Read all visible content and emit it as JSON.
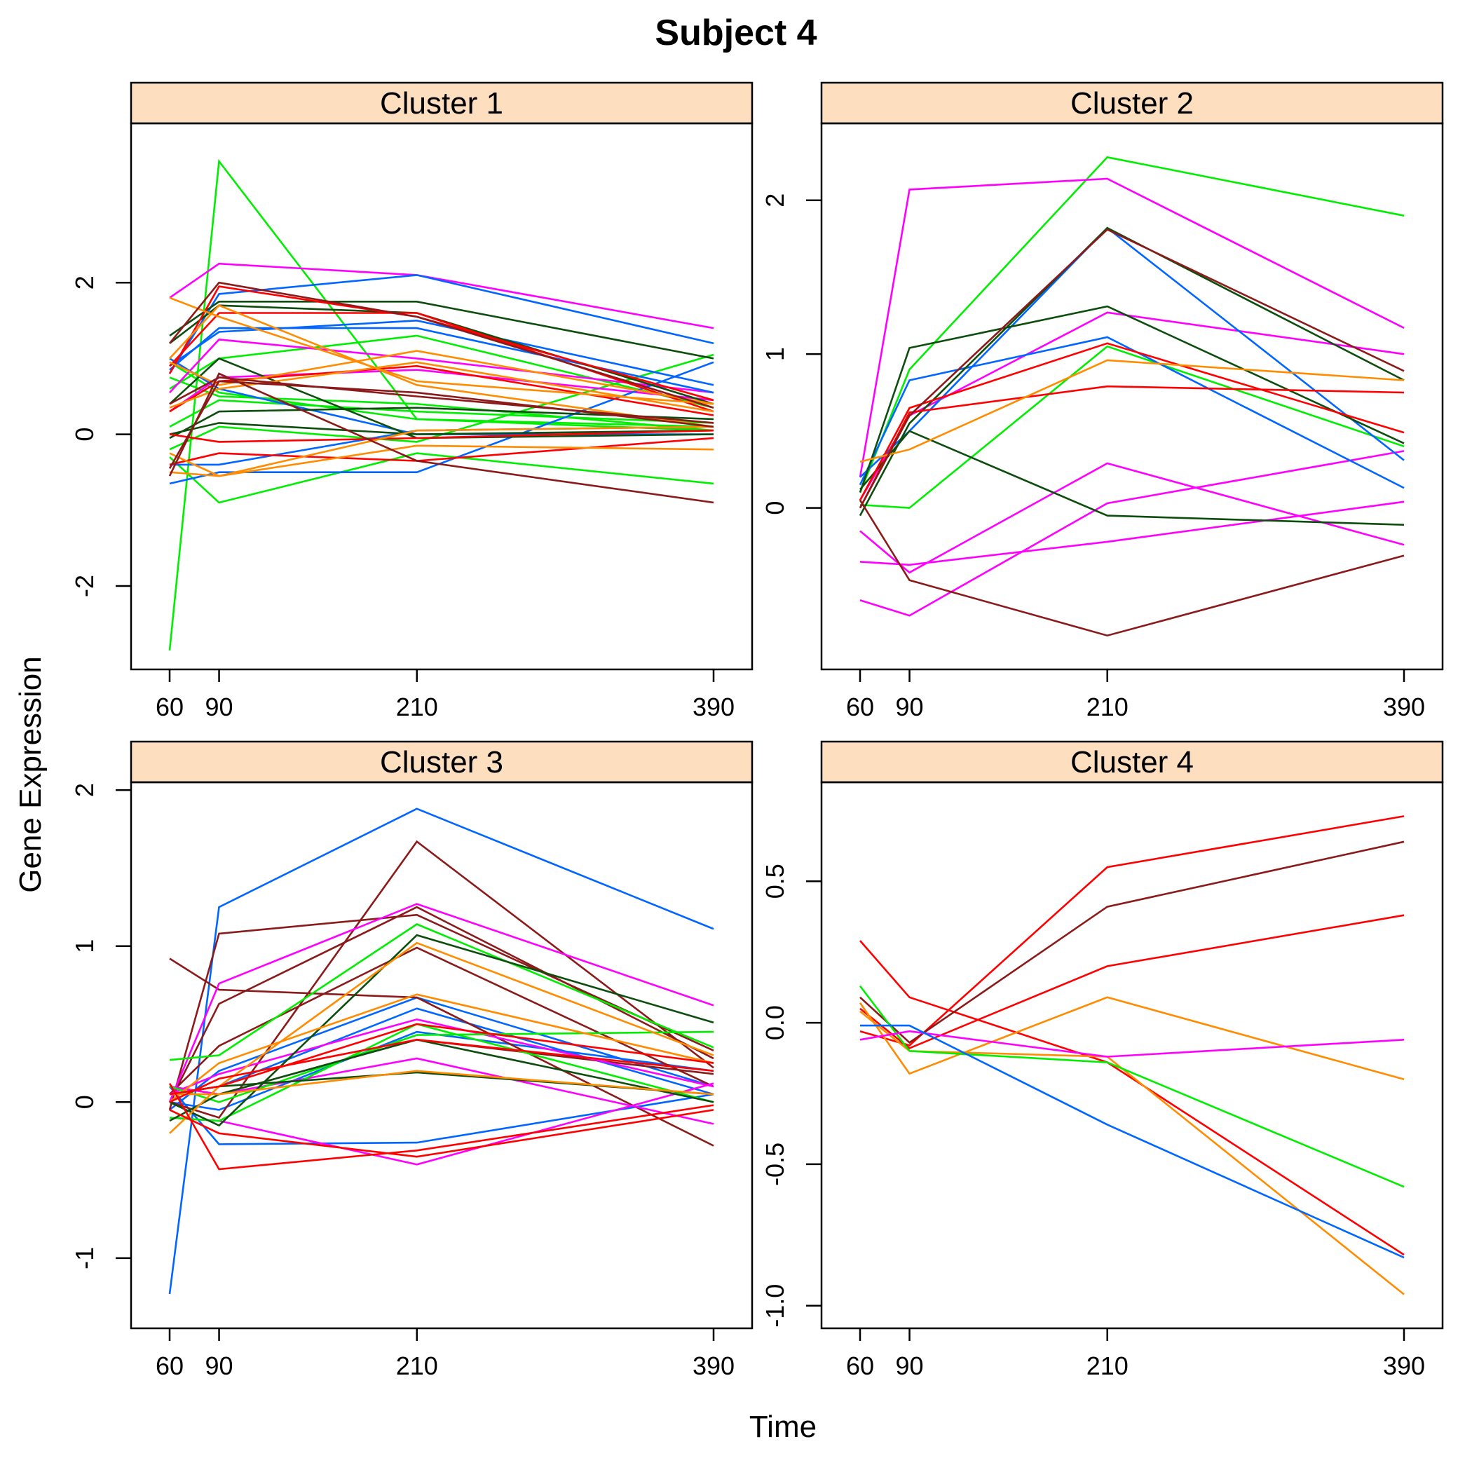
{
  "title": "Subject 4",
  "xlabel": "Time",
  "ylabel": "Gene Expression",
  "colors": {
    "strip": "#FDDFC0",
    "series_palette": [
      "#00EE00",
      "#FF00FF",
      "#0066FF",
      "#0D4D0D",
      "#FF0000",
      "#FF8C00",
      "#8B1A1A"
    ]
  },
  "chart_data": [
    {
      "type": "line",
      "panel": "Cluster 1",
      "x": [
        60,
        90,
        210,
        390
      ],
      "xticks": [
        60,
        90,
        210,
        390
      ],
      "ylim": [
        -3.1,
        4.1
      ],
      "yticks": [
        -2,
        0,
        2
      ],
      "series": [
        {
          "color": "#00EE00",
          "values": [
            -2.85,
            3.6,
            0.2,
            0.05
          ]
        },
        {
          "color": "#00EE00",
          "values": [
            -0.3,
            -0.9,
            -0.25,
            -0.65
          ]
        },
        {
          "color": "#00EE00",
          "values": [
            0.6,
            1.0,
            1.3,
            0.35
          ]
        },
        {
          "color": "#00EE00",
          "values": [
            0.75,
            0.5,
            0.4,
            0.05
          ]
        },
        {
          "color": "#00EE00",
          "values": [
            0.1,
            0.45,
            0.3,
            0.15
          ]
        },
        {
          "color": "#00EE00",
          "values": [
            0.95,
            0.55,
            0.2,
            0.1
          ]
        },
        {
          "color": "#00EE00",
          "values": [
            -0.2,
            0.1,
            -0.1,
            1.05
          ]
        },
        {
          "color": "#FF00FF",
          "values": [
            1.8,
            2.25,
            2.1,
            1.4
          ]
        },
        {
          "color": "#FF00FF",
          "values": [
            0.55,
            1.25,
            1.0,
            0.55
          ]
        },
        {
          "color": "#FF00FF",
          "values": [
            0.3,
            0.75,
            0.85,
            0.45
          ]
        },
        {
          "color": "#0066FF",
          "values": [
            0.8,
            1.85,
            2.1,
            1.2
          ]
        },
        {
          "color": "#0066FF",
          "values": [
            0.9,
            1.35,
            1.5,
            0.65
          ]
        },
        {
          "color": "#0066FF",
          "values": [
            -0.65,
            -0.5,
            -0.5,
            0.95
          ]
        },
        {
          "color": "#0066FF",
          "values": [
            1.0,
            0.6,
            0.0,
            0.0
          ]
        },
        {
          "color": "#0066FF",
          "values": [
            0.85,
            1.4,
            1.4,
            0.55
          ]
        },
        {
          "color": "#0066FF",
          "values": [
            -0.4,
            -0.4,
            0.05,
            0.1
          ]
        },
        {
          "color": "#0D4D0D",
          "values": [
            1.3,
            1.75,
            1.75,
            1.0
          ]
        },
        {
          "color": "#0D4D0D",
          "values": [
            0.0,
            0.15,
            0.0,
            0.05
          ]
        },
        {
          "color": "#0D4D0D",
          "values": [
            1.2,
            1.7,
            1.6,
            0.4
          ]
        },
        {
          "color": "#0D4D0D",
          "values": [
            -0.05,
            0.3,
            0.35,
            0.2
          ]
        },
        {
          "color": "#0D4D0D",
          "values": [
            0.4,
            1.0,
            -0.05,
            0.0
          ]
        },
        {
          "color": "#FF0000",
          "values": [
            0.8,
            1.95,
            1.55,
            0.45
          ]
        },
        {
          "color": "#FF0000",
          "values": [
            -0.4,
            -0.25,
            -0.35,
            -0.05
          ]
        },
        {
          "color": "#FF0000",
          "values": [
            0.9,
            1.6,
            1.6,
            0.3
          ]
        },
        {
          "color": "#FF0000",
          "values": [
            0.0,
            -0.1,
            -0.05,
            0.05
          ]
        },
        {
          "color": "#FF0000",
          "values": [
            0.3,
            0.7,
            0.9,
            0.25
          ]
        },
        {
          "color": "#FF8C00",
          "values": [
            1.8,
            1.55,
            0.7,
            0.4
          ]
        },
        {
          "color": "#FF8C00",
          "values": [
            0.95,
            0.65,
            1.1,
            0.4
          ]
        },
        {
          "color": "#FF8C00",
          "values": [
            -0.25,
            -0.55,
            -0.15,
            -0.2
          ]
        },
        {
          "color": "#FF8C00",
          "values": [
            -0.5,
            -0.55,
            0.05,
            0.1
          ]
        },
        {
          "color": "#FF8C00",
          "values": [
            1.0,
            1.7,
            0.65,
            0.1
          ]
        },
        {
          "color": "#FF8C00",
          "values": [
            0.35,
            0.6,
            0.95,
            0.3
          ]
        },
        {
          "color": "#8B1A1A",
          "values": [
            1.2,
            2.0,
            1.55,
            0.35
          ]
        },
        {
          "color": "#8B1A1A",
          "values": [
            -0.55,
            0.8,
            -0.35,
            -0.9
          ]
        },
        {
          "color": "#8B1A1A",
          "values": [
            0.4,
            0.75,
            0.5,
            0.15
          ]
        },
        {
          "color": "#8B1A1A",
          "values": [
            -0.45,
            0.7,
            0.55,
            0.1
          ]
        }
      ]
    },
    {
      "type": "line",
      "panel": "Cluster 2",
      "x": [
        60,
        90,
        210,
        390
      ],
      "xticks": [
        60,
        90,
        210,
        390
      ],
      "ylim": [
        -1.05,
        2.5
      ],
      "yticks": [
        0,
        1,
        2
      ],
      "series": [
        {
          "color": "#00EE00",
          "values": [
            0.1,
            0.9,
            2.28,
            1.9
          ]
        },
        {
          "color": "#00EE00",
          "values": [
            0.02,
            0.0,
            1.05,
            0.4
          ]
        },
        {
          "color": "#FF00FF",
          "values": [
            0.2,
            2.07,
            2.14,
            1.17
          ]
        },
        {
          "color": "#FF00FF",
          "values": [
            0.05,
            0.6,
            1.27,
            1.0
          ]
        },
        {
          "color": "#FF00FF",
          "values": [
            -0.15,
            -0.42,
            0.29,
            -0.24
          ]
        },
        {
          "color": "#FF00FF",
          "values": [
            -0.6,
            -0.7,
            0.03,
            0.37
          ]
        },
        {
          "color": "#FF00FF",
          "values": [
            -0.35,
            -0.37,
            -0.22,
            0.04
          ]
        },
        {
          "color": "#0066FF",
          "values": [
            0.15,
            0.83,
            1.11,
            0.13
          ]
        },
        {
          "color": "#0066FF",
          "values": [
            0.2,
            0.5,
            1.82,
            0.31
          ]
        },
        {
          "color": "#0D4D0D",
          "values": [
            0.1,
            1.04,
            1.31,
            0.42
          ]
        },
        {
          "color": "#0D4D0D",
          "values": [
            -0.05,
            0.55,
            1.82,
            0.83
          ]
        },
        {
          "color": "#0D4D0D",
          "values": [
            0.12,
            0.5,
            -0.05,
            -0.11
          ]
        },
        {
          "color": "#FF0000",
          "values": [
            0.05,
            0.65,
            1.07,
            0.49
          ]
        },
        {
          "color": "#FF0000",
          "values": [
            0.0,
            0.62,
            0.79,
            0.75
          ]
        },
        {
          "color": "#FF8C00",
          "values": [
            0.3,
            0.38,
            0.96,
            0.83
          ]
        },
        {
          "color": "#8B1A1A",
          "values": [
            0.05,
            -0.47,
            -0.83,
            -0.31
          ]
        },
        {
          "color": "#8B1A1A",
          "values": [
            0.0,
            0.6,
            1.81,
            0.89
          ]
        }
      ]
    },
    {
      "type": "line",
      "panel": "Cluster 3",
      "x": [
        60,
        90,
        210,
        390
      ],
      "xticks": [
        60,
        90,
        210,
        390
      ],
      "ylim": [
        -1.45,
        2.05
      ],
      "yticks": [
        -1,
        0,
        1,
        2
      ],
      "series": [
        {
          "color": "#0066FF",
          "values": [
            -1.23,
            1.25,
            1.88,
            1.11
          ]
        },
        {
          "color": "#0066FF",
          "values": [
            0.1,
            -0.27,
            -0.26,
            0.05
          ]
        },
        {
          "color": "#0066FF",
          "values": [
            -0.05,
            0.2,
            0.67,
            0.1
          ]
        },
        {
          "color": "#0066FF",
          "values": [
            0.05,
            0.1,
            0.6,
            0.05
          ]
        },
        {
          "color": "#0066FF",
          "values": [
            0.0,
            -0.05,
            0.45,
            0.2
          ]
        },
        {
          "color": "#8B1A1A",
          "values": [
            0.92,
            0.72,
            0.67,
            -0.28
          ]
        },
        {
          "color": "#8B1A1A",
          "values": [
            -0.05,
            1.08,
            1.2,
            0.33
          ]
        },
        {
          "color": "#8B1A1A",
          "values": [
            0.0,
            -0.1,
            1.67,
            0.22
          ]
        },
        {
          "color": "#8B1A1A",
          "values": [
            0.0,
            0.63,
            1.25,
            0.28
          ]
        },
        {
          "color": "#8B1A1A",
          "values": [
            0.05,
            0.36,
            0.99,
            0.1
          ]
        },
        {
          "color": "#8B1A1A",
          "values": [
            0.1,
            0.05,
            0.4,
            0.18
          ]
        },
        {
          "color": "#FF00FF",
          "values": [
            0.0,
            0.76,
            1.27,
            0.62
          ]
        },
        {
          "color": "#FF00FF",
          "values": [
            -0.1,
            -0.12,
            -0.4,
            0.12
          ]
        },
        {
          "color": "#FF00FF",
          "values": [
            0.1,
            0.05,
            0.28,
            -0.14
          ]
        },
        {
          "color": "#FF00FF",
          "values": [
            0.05,
            0.18,
            0.53,
            0.1
          ]
        },
        {
          "color": "#00EE00",
          "values": [
            0.27,
            0.3,
            1.14,
            0.35
          ]
        },
        {
          "color": "#00EE00",
          "values": [
            0.1,
            0.0,
            0.43,
            0.45
          ]
        },
        {
          "color": "#00EE00",
          "values": [
            -0.1,
            -0.12,
            0.5,
            0.0
          ]
        },
        {
          "color": "#0D4D0D",
          "values": [
            0.0,
            -0.15,
            1.07,
            0.51
          ]
        },
        {
          "color": "#0D4D0D",
          "values": [
            0.05,
            0.1,
            0.19,
            0.05
          ]
        },
        {
          "color": "#0D4D0D",
          "values": [
            -0.12,
            0.05,
            0.4,
            0.0
          ]
        },
        {
          "color": "#FF8C00",
          "values": [
            -0.2,
            0.1,
            1.02,
            0.3
          ]
        },
        {
          "color": "#FF8C00",
          "values": [
            0.0,
            0.25,
            0.69,
            0.25
          ]
        },
        {
          "color": "#FF8C00",
          "values": [
            0.05,
            0.05,
            0.2,
            0.05
          ]
        },
        {
          "color": "#FF0000",
          "values": [
            0.12,
            -0.43,
            -0.31,
            -0.02
          ]
        },
        {
          "color": "#FF0000",
          "values": [
            0.05,
            0.1,
            0.5,
            0.25
          ]
        },
        {
          "color": "#FF0000",
          "values": [
            0.0,
            0.15,
            0.4,
            0.2
          ]
        },
        {
          "color": "#FF0000",
          "values": [
            -0.05,
            -0.2,
            -0.35,
            -0.05
          ]
        }
      ]
    },
    {
      "type": "line",
      "panel": "Cluster 4",
      "x": [
        60,
        90,
        210,
        390
      ],
      "xticks": [
        60,
        90,
        210,
        390
      ],
      "ylim": [
        -1.08,
        0.85
      ],
      "yticks": [
        -1.0,
        -0.5,
        0.0,
        0.5
      ],
      "ytick_labels": [
        "-1.0",
        "-0.5",
        "0.0",
        "0.5"
      ],
      "series": [
        {
          "color": "#FF0000",
          "values": [
            -0.03,
            -0.08,
            0.55,
            0.73
          ]
        },
        {
          "color": "#FF0000",
          "values": [
            0.29,
            0.09,
            -0.14,
            -0.82
          ]
        },
        {
          "color": "#FF0000",
          "values": [
            0.05,
            -0.09,
            0.2,
            0.38
          ]
        },
        {
          "color": "#8B1A1A",
          "values": [
            0.09,
            -0.07,
            0.41,
            0.64
          ]
        },
        {
          "color": "#FF8C00",
          "values": [
            0.07,
            -0.18,
            0.09,
            -0.2
          ]
        },
        {
          "color": "#FF8C00",
          "values": [
            0.04,
            -0.1,
            -0.12,
            -0.96
          ]
        },
        {
          "color": "#00EE00",
          "values": [
            0.13,
            -0.1,
            -0.14,
            -0.58
          ]
        },
        {
          "color": "#FF00FF",
          "values": [
            -0.06,
            -0.03,
            -0.12,
            -0.06
          ]
        },
        {
          "color": "#0066FF",
          "values": [
            -0.01,
            -0.01,
            -0.36,
            -0.83
          ]
        }
      ]
    }
  ]
}
